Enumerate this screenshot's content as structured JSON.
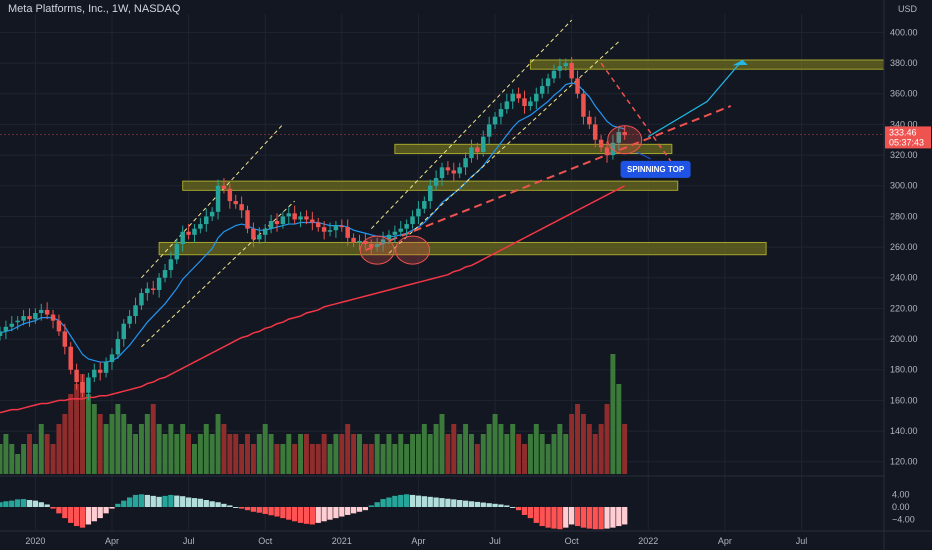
{
  "header": {
    "title": "Meta Platforms, Inc., 1W, NASDAQ"
  },
  "price_axis": {
    "currency": "USD",
    "last_price": "333.46",
    "countdown": "05:37:43"
  },
  "annotation": {
    "label": "SPINNING TOP"
  },
  "colors": {
    "background": "#131722",
    "up_candle": "#26a69a",
    "down_candle": "#ef5350",
    "ema_fast": "#2196f3",
    "ema_slow": "#f23645",
    "zone_fill": "#6b6b1f",
    "zone_border": "#a5a52c",
    "channel_dash": "#f0e68c",
    "trend_dash": "#ef5350",
    "projection": "#22b8e6",
    "annotation_bg": "#1e53e5",
    "volume_up": "#3b7a3b",
    "volume_down": "#8f2d2d"
  },
  "chart_data": {
    "type": "candlestick",
    "title": "Meta Platforms, Inc., 1W, NASDAQ",
    "y_ticks": [
      400.0,
      380.0,
      360.0,
      340.0,
      320.0,
      300.0,
      280.0,
      260.0,
      240.0,
      220.0,
      200.0,
      180.0,
      160.0,
      140.0,
      120.0
    ],
    "y_tick_labels": [
      "400.00",
      "380.00",
      "360.00",
      "340.00",
      "320.00",
      "300.00",
      "280.00",
      "260.00",
      "240.00",
      "220.00",
      "200.00",
      "180.00",
      "160.00",
      "140.00",
      "120.00"
    ],
    "ylim": [
      112,
      412
    ],
    "x_ticks": [
      "2020",
      "Apr",
      "Jul",
      "Oct",
      "2021",
      "Apr",
      "Jul",
      "Oct",
      "2022",
      "Apr",
      "Jul"
    ],
    "x_tick_weeks": [
      0,
      13,
      26,
      39,
      52,
      65,
      78,
      91,
      104,
      117,
      130
    ],
    "week_range": [
      -6,
      144
    ],
    "last_price": 333.46,
    "candles_close": [
      205,
      208,
      210,
      212,
      215,
      213,
      217,
      219,
      216,
      212,
      205,
      195,
      180,
      172,
      165,
      175,
      180,
      178,
      185,
      190,
      200,
      210,
      215,
      222,
      230,
      233,
      232,
      240,
      245,
      252,
      262,
      270,
      268,
      272,
      275,
      280,
      283,
      300,
      298,
      290,
      288,
      284,
      272,
      265,
      268,
      272,
      277,
      275,
      280,
      282,
      278,
      280,
      278,
      276,
      273,
      270,
      271,
      274,
      273,
      266,
      263,
      264,
      262,
      260,
      262,
      265,
      268,
      270,
      272,
      275,
      280,
      285,
      290,
      300,
      305,
      312,
      310,
      308,
      312,
      318,
      325,
      322,
      332,
      340,
      345,
      350,
      355,
      360,
      357,
      352,
      355,
      360,
      365,
      370,
      375,
      378,
      380,
      370,
      360,
      345,
      340,
      330,
      325,
      320,
      328,
      335,
      333
    ],
    "candles_open": [
      202,
      205,
      208,
      211,
      212,
      215,
      213,
      217,
      219,
      216,
      212,
      205,
      195,
      180,
      172,
      165,
      175,
      180,
      178,
      185,
      190,
      200,
      210,
      215,
      222,
      230,
      233,
      232,
      240,
      245,
      252,
      262,
      270,
      268,
      272,
      275,
      280,
      283,
      300,
      298,
      290,
      288,
      284,
      272,
      265,
      268,
      272,
      277,
      275,
      280,
      282,
      278,
      280,
      278,
      276,
      273,
      270,
      271,
      274,
      273,
      266,
      263,
      264,
      262,
      260,
      262,
      265,
      268,
      270,
      272,
      275,
      280,
      285,
      290,
      300,
      305,
      312,
      310,
      308,
      312,
      318,
      325,
      322,
      332,
      340,
      345,
      350,
      355,
      360,
      357,
      352,
      355,
      360,
      365,
      370,
      375,
      378,
      380,
      370,
      360,
      345,
      340,
      330,
      325,
      320,
      328,
      335
    ],
    "first_candle_week": -6,
    "ema_fast": {
      "name": "",
      "start_week": -6,
      "values": [
        204,
        205,
        206,
        208,
        210,
        211,
        212,
        214,
        214,
        214,
        212,
        208,
        202,
        196,
        190,
        187,
        186,
        185,
        185,
        186,
        188,
        192,
        196,
        201,
        206,
        211,
        215,
        219,
        223,
        228,
        233,
        239,
        243,
        247,
        251,
        255,
        259,
        266,
        270,
        272,
        274,
        275,
        274,
        272,
        271,
        271,
        272,
        273,
        274,
        275,
        275,
        276,
        276,
        276,
        276,
        275,
        274,
        274,
        274,
        273,
        271,
        270,
        269,
        268,
        267,
        267,
        267,
        267,
        268,
        269,
        271,
        273,
        276,
        280,
        284,
        289,
        292,
        295,
        298,
        302,
        306,
        309,
        313,
        318,
        323,
        328,
        333,
        338,
        342,
        344,
        346,
        349,
        352,
        355,
        359,
        362,
        366,
        367,
        366,
        362,
        358,
        352,
        347,
        342,
        339,
        338,
        337
      ]
    },
    "ema_slow": {
      "name": "",
      "start_week": -6,
      "values": [
        152,
        153,
        154,
        154,
        155,
        156,
        157,
        158,
        158,
        159,
        160,
        160,
        161,
        161,
        161,
        162,
        162,
        163,
        163,
        164,
        165,
        166,
        167,
        168,
        169,
        171,
        172,
        174,
        175,
        177,
        179,
        181,
        183,
        185,
        187,
        189,
        191,
        193,
        195,
        197,
        199,
        201,
        202,
        204,
        205,
        207,
        208,
        210,
        211,
        213,
        214,
        215,
        217,
        218,
        219,
        221,
        222,
        223,
        224,
        225,
        226,
        227,
        228,
        229,
        230,
        231,
        232,
        233,
        234,
        235,
        236,
        237,
        238,
        239,
        240,
        241,
        242,
        244,
        245,
        247,
        248,
        250,
        252,
        254,
        256,
        258,
        260,
        262,
        264,
        266,
        268,
        270,
        272,
        274,
        276,
        278,
        280,
        282,
        284,
        286,
        288,
        290,
        292,
        294,
        296,
        298,
        300
      ]
    },
    "zones": [
      {
        "from_week": 84,
        "to_week": 144,
        "low": 376,
        "high": 382
      },
      {
        "from_week": 61,
        "to_week": 108,
        "low": 321,
        "high": 327
      },
      {
        "from_week": 25,
        "to_week": 109,
        "low": 297,
        "high": 303
      },
      {
        "from_week": 21,
        "to_week": 124,
        "low": 255,
        "high": 263
      }
    ],
    "volume": [
      3,
      4,
      3,
      2,
      3,
      4,
      3,
      5,
      4,
      3,
      5,
      6,
      8,
      9,
      10,
      8,
      7,
      6,
      5,
      6,
      7,
      6,
      5,
      4,
      5,
      6,
      7,
      5,
      4,
      5,
      4,
      5,
      4,
      3,
      4,
      5,
      4,
      6,
      5,
      4,
      4,
      3,
      4,
      3,
      4,
      5,
      4,
      3,
      3,
      4,
      3,
      4,
      4,
      3,
      3,
      4,
      3,
      4,
      4,
      5,
      4,
      4,
      3,
      3,
      4,
      3,
      4,
      3,
      4,
      3,
      4,
      4,
      5,
      4,
      5,
      6,
      4,
      5,
      4,
      5,
      4,
      3,
      4,
      5,
      6,
      5,
      4,
      5,
      4,
      3,
      4,
      5,
      4,
      3,
      4,
      5,
      4,
      6,
      7,
      6,
      5,
      4,
      5,
      7,
      12,
      9,
      5
    ],
    "oscillator": [
      1.5,
      1.8,
      2,
      2.4,
      2.5,
      2.2,
      2,
      1.5,
      0.8,
      -0.5,
      -2,
      -3.5,
      -5,
      -6,
      -6.5,
      -5.5,
      -4.5,
      -3.5,
      -2,
      -0.5,
      1,
      2,
      3,
      3.8,
      4,
      3.8,
      3.5,
      3.2,
      3.5,
      3.8,
      3.6,
      3.4,
      3,
      2.8,
      2.6,
      2.2,
      1.8,
      1.5,
      1,
      0.5,
      0,
      -0.5,
      -1,
      -1.5,
      -1.8,
      -2.2,
      -2.6,
      -3,
      -3.5,
      -4,
      -4.5,
      -5,
      -5.3,
      -5.5,
      -5,
      -4.5,
      -4,
      -3.5,
      -3,
      -2.5,
      -2,
      -1.5,
      -1,
      0.5,
      1.5,
      2.5,
      3,
      3.5,
      3.8,
      4,
      3.8,
      3.6,
      3.4,
      3.2,
      3,
      2.8,
      2.6,
      2.4,
      2.2,
      2,
      1.8,
      1.6,
      1.4,
      1.2,
      1,
      0.8,
      0.5,
      0,
      -1,
      -2.5,
      -3.5,
      -5,
      -6,
      -6.5,
      -6.8,
      -7,
      -6.5,
      -5.5,
      -6,
      -6.5,
      -6.8,
      -7,
      -7,
      -6.8,
      -6.5,
      -6,
      -5.5
    ],
    "oscillator_ticks": [
      4,
      0,
      -4
    ],
    "oscillator_tick_labels": [
      "4.00",
      "0.00",
      "−4.00"
    ]
  }
}
